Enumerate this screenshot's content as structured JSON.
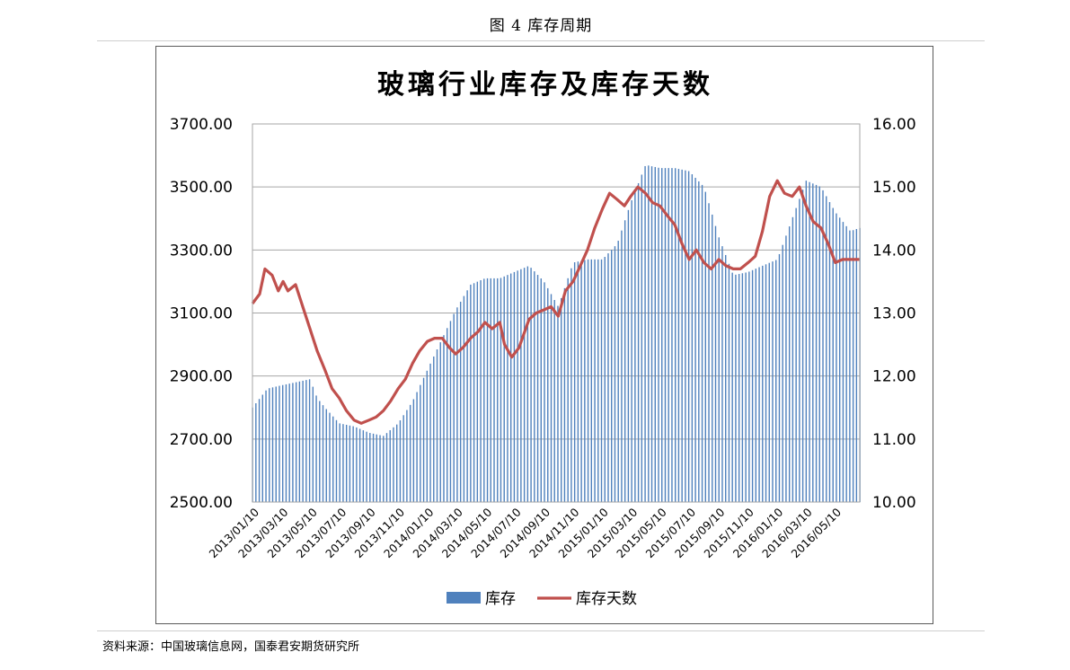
{
  "figure_caption": "图 4 库存周期",
  "source_note": "资料来源：中国玻璃信息网，国泰君安期货研究所",
  "colors": {
    "bar": "#4f81bd",
    "line": "#c0504d",
    "grid": "#a6a6a6",
    "frame": "#595959"
  },
  "chart_data": {
    "type": "bar+line",
    "title": "玻璃行业库存及库存天数",
    "legend_position": "bottom",
    "grid": true,
    "y_left": {
      "ylim": [
        2500,
        3700
      ],
      "ticks": [
        "3700.00",
        "3500.00",
        "3300.00",
        "3100.00",
        "2900.00",
        "2700.00",
        "2500.00"
      ]
    },
    "y_right": {
      "ylim": [
        10,
        16
      ],
      "ticks": [
        "16.00",
        "15.00",
        "14.00",
        "13.00",
        "12.00",
        "11.00",
        "10.00"
      ]
    },
    "x_start": "2013-01-10",
    "x_end": "2016-06-30",
    "x_tick_labels": [
      "2013/01/10",
      "2013/03/10",
      "2013/05/10",
      "2013/07/10",
      "2013/09/10",
      "2013/11/10",
      "2014/01/10",
      "2014/03/10",
      "2014/05/10",
      "2014/07/10",
      "2014/09/10",
      "2014/11/10",
      "2015/01/10",
      "2015/03/10",
      "2015/05/10",
      "2015/07/10",
      "2015/09/10",
      "2015/11/10",
      "2016/01/10",
      "2016/03/10",
      "2016/05/10"
    ],
    "series": [
      {
        "name": "库存",
        "type": "bar",
        "axis": "left",
        "points": [
          [
            "2013-01-10",
            2800
          ],
          [
            "2013-02-10",
            2860
          ],
          [
            "2013-03-10",
            2870
          ],
          [
            "2013-04-10",
            2880
          ],
          [
            "2013-05-10",
            2890
          ],
          [
            "2013-05-25",
            2830
          ],
          [
            "2013-06-10",
            2800
          ],
          [
            "2013-07-10",
            2750
          ],
          [
            "2013-08-10",
            2740
          ],
          [
            "2013-09-10",
            2720
          ],
          [
            "2013-10-10",
            2710
          ],
          [
            "2013-11-10",
            2750
          ],
          [
            "2013-12-10",
            2820
          ],
          [
            "2014-01-10",
            2920
          ],
          [
            "2014-02-10",
            3020
          ],
          [
            "2014-03-10",
            3110
          ],
          [
            "2014-04-10",
            3190
          ],
          [
            "2014-05-10",
            3210
          ],
          [
            "2014-06-10",
            3210
          ],
          [
            "2014-07-10",
            3230
          ],
          [
            "2014-08-10",
            3250
          ],
          [
            "2014-09-10",
            3200
          ],
          [
            "2014-10-10",
            3120
          ],
          [
            "2014-11-10",
            3260
          ],
          [
            "2014-12-10",
            3270
          ],
          [
            "2015-01-10",
            3270
          ],
          [
            "2015-02-10",
            3320
          ],
          [
            "2015-03-10",
            3450
          ],
          [
            "2015-04-10",
            3570
          ],
          [
            "2015-05-10",
            3560
          ],
          [
            "2015-06-10",
            3560
          ],
          [
            "2015-07-10",
            3550
          ],
          [
            "2015-08-10",
            3500
          ],
          [
            "2015-09-10",
            3340
          ],
          [
            "2015-10-10",
            3220
          ],
          [
            "2015-11-10",
            3230
          ],
          [
            "2015-12-10",
            3250
          ],
          [
            "2016-01-10",
            3270
          ],
          [
            "2016-02-10",
            3400
          ],
          [
            "2016-03-10",
            3520
          ],
          [
            "2016-04-10",
            3500
          ],
          [
            "2016-05-10",
            3420
          ],
          [
            "2016-06-10",
            3360
          ],
          [
            "2016-06-30",
            3370
          ]
        ]
      },
      {
        "name": "库存天数",
        "type": "line",
        "axis": "right",
        "points": [
          [
            "2013-01-10",
            13.15
          ],
          [
            "2013-01-25",
            13.3
          ],
          [
            "2013-02-05",
            13.7
          ],
          [
            "2013-02-20",
            13.6
          ],
          [
            "2013-03-05",
            13.35
          ],
          [
            "2013-03-15",
            13.5
          ],
          [
            "2013-03-25",
            13.35
          ],
          [
            "2013-04-10",
            13.45
          ],
          [
            "2013-04-25",
            13.1
          ],
          [
            "2013-05-10",
            12.75
          ],
          [
            "2013-05-25",
            12.4
          ],
          [
            "2013-06-10",
            12.1
          ],
          [
            "2013-06-25",
            11.8
          ],
          [
            "2013-07-10",
            11.65
          ],
          [
            "2013-07-25",
            11.45
          ],
          [
            "2013-08-10",
            11.3
          ],
          [
            "2013-08-25",
            11.25
          ],
          [
            "2013-09-10",
            11.3
          ],
          [
            "2013-09-25",
            11.35
          ],
          [
            "2013-10-10",
            11.45
          ],
          [
            "2013-10-25",
            11.6
          ],
          [
            "2013-11-10",
            11.8
          ],
          [
            "2013-11-25",
            11.95
          ],
          [
            "2013-12-10",
            12.2
          ],
          [
            "2013-12-25",
            12.4
          ],
          [
            "2014-01-10",
            12.55
          ],
          [
            "2014-01-25",
            12.6
          ],
          [
            "2014-02-10",
            12.6
          ],
          [
            "2014-02-25",
            12.45
          ],
          [
            "2014-03-10",
            12.35
          ],
          [
            "2014-03-25",
            12.45
          ],
          [
            "2014-04-10",
            12.6
          ],
          [
            "2014-04-25",
            12.7
          ],
          [
            "2014-05-10",
            12.85
          ],
          [
            "2014-05-25",
            12.75
          ],
          [
            "2014-06-10",
            12.85
          ],
          [
            "2014-06-20",
            12.5
          ],
          [
            "2014-07-05",
            12.3
          ],
          [
            "2014-07-20",
            12.45
          ],
          [
            "2014-08-10",
            12.9
          ],
          [
            "2014-08-25",
            13.0
          ],
          [
            "2014-09-10",
            13.05
          ],
          [
            "2014-09-25",
            13.1
          ],
          [
            "2014-10-10",
            12.95
          ],
          [
            "2014-10-25",
            13.35
          ],
          [
            "2014-11-10",
            13.5
          ],
          [
            "2014-11-25",
            13.75
          ],
          [
            "2014-12-10",
            14.0
          ],
          [
            "2014-12-25",
            14.35
          ],
          [
            "2015-01-10",
            14.65
          ],
          [
            "2015-01-25",
            14.9
          ],
          [
            "2015-02-10",
            14.8
          ],
          [
            "2015-02-25",
            14.7
          ],
          [
            "2015-03-10",
            14.85
          ],
          [
            "2015-03-25",
            15.0
          ],
          [
            "2015-04-10",
            14.9
          ],
          [
            "2015-04-25",
            14.75
          ],
          [
            "2015-05-10",
            14.7
          ],
          [
            "2015-05-25",
            14.55
          ],
          [
            "2015-06-10",
            14.4
          ],
          [
            "2015-06-25",
            14.1
          ],
          [
            "2015-07-10",
            13.85
          ],
          [
            "2015-07-25",
            14.0
          ],
          [
            "2015-08-10",
            13.8
          ],
          [
            "2015-08-25",
            13.7
          ],
          [
            "2015-09-10",
            13.85
          ],
          [
            "2015-09-25",
            13.75
          ],
          [
            "2015-10-10",
            13.7
          ],
          [
            "2015-10-25",
            13.7
          ],
          [
            "2015-11-10",
            13.8
          ],
          [
            "2015-11-25",
            13.9
          ],
          [
            "2015-12-10",
            14.3
          ],
          [
            "2015-12-25",
            14.85
          ],
          [
            "2016-01-10",
            15.1
          ],
          [
            "2016-01-25",
            14.9
          ],
          [
            "2016-02-10",
            14.85
          ],
          [
            "2016-02-25",
            15.0
          ],
          [
            "2016-03-10",
            14.7
          ],
          [
            "2016-03-25",
            14.45
          ],
          [
            "2016-04-10",
            14.35
          ],
          [
            "2016-04-25",
            14.1
          ],
          [
            "2016-05-10",
            13.8
          ],
          [
            "2016-05-25",
            13.85
          ],
          [
            "2016-06-30",
            13.85
          ]
        ]
      }
    ]
  }
}
